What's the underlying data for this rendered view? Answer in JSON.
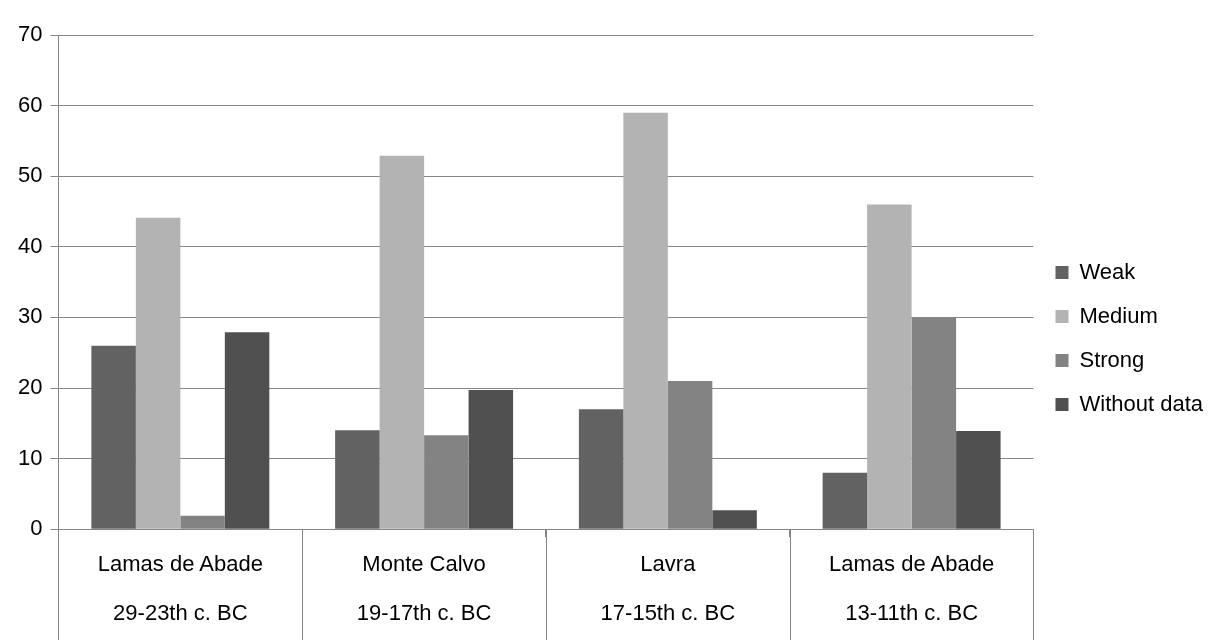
{
  "chart_data": {
    "type": "bar",
    "categories": [
      "Lamas de Abade\n29-23th c. BC",
      "Monte Calvo\n19-17th c. BC",
      "Lavra\n17-15th c. BC",
      "Lamas de Abade\n13-11th c. BC"
    ],
    "series": [
      {
        "name": "Weak",
        "color": "#626262",
        "values": [
          26,
          14,
          17,
          8
        ]
      },
      {
        "name": "Medium",
        "color": "#b3b3b3",
        "values": [
          44.1,
          52.9,
          59,
          46
        ]
      },
      {
        "name": "Strong",
        "color": "#838383",
        "values": [
          1.9,
          13.3,
          21,
          30
        ]
      },
      {
        "name": "Without data",
        "color": "#505050",
        "values": [
          27.9,
          19.7,
          2.7,
          13.9
        ]
      }
    ],
    "ylim": [
      0,
      70
    ],
    "yticks": [
      0,
      10,
      20,
      30,
      40,
      50,
      60,
      70
    ],
    "grid": "y",
    "legend": "right"
  }
}
